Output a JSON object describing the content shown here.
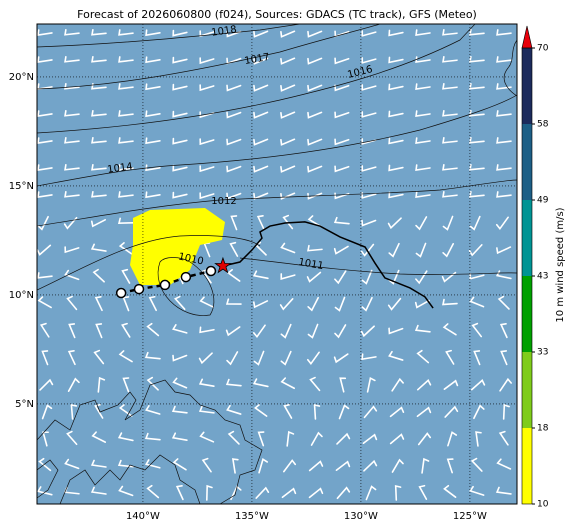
{
  "title": "Forecast of 2026060800 (f024), Sources: GDACS (TC track), GFS (Meteo)",
  "map": {
    "xlim": [
      -144.86,
      -122.84
    ],
    "ylim": [
      0.41,
      22.43
    ],
    "ocean_color": "#73a4c9",
    "lon_ticks": [
      {
        "value": -140,
        "label": "140°W"
      },
      {
        "value": -135,
        "label": "135°W"
      },
      {
        "value": -130,
        "label": "130°W"
      },
      {
        "value": -125,
        "label": "125°W"
      }
    ],
    "lat_ticks": [
      {
        "value": 5,
        "label": "5°N"
      },
      {
        "value": 10,
        "label": "10°N"
      },
      {
        "value": 15,
        "label": "15°N"
      },
      {
        "value": 20,
        "label": "20°N"
      }
    ]
  },
  "isobar_labels": [
    1018,
    1017,
    1016,
    1014,
    1012,
    1010,
    1011
  ],
  "colorbar": {
    "label": "10 m wind speed (m/s)",
    "ticks": [
      10,
      18,
      33,
      43,
      49,
      58,
      70
    ],
    "colors": [
      "#ffff00",
      "#7fcc1a",
      "#00a000",
      "#009494",
      "#1d5f86",
      "#1c2b5c"
    ],
    "extend_color": "#e8000b"
  },
  "track": {
    "past": {
      "lon": [
        -141.0,
        -140.18,
        -138.99,
        -138.03,
        -136.88
      ],
      "lat": [
        10.09,
        10.27,
        10.46,
        10.82,
        11.1
      ]
    },
    "current": {
      "lon": -136.33,
      "lat": 11.33,
      "color": "#e00000"
    },
    "forecast": {
      "lon": [
        -136.33,
        -135.55,
        -135.0,
        -134.54,
        -134.63,
        -134.17,
        -133.48,
        -132.57,
        -131.88,
        -130.96,
        -129.81,
        -129.36,
        -128.9,
        -127.75,
        -127.06,
        -126.69
      ],
      "lat": [
        11.33,
        11.51,
        12.06,
        12.61,
        12.89,
        13.16,
        13.3,
        13.35,
        13.16,
        12.66,
        12.2,
        11.47,
        10.78,
        10.32,
        9.91,
        9.4
      ]
    }
  }
}
